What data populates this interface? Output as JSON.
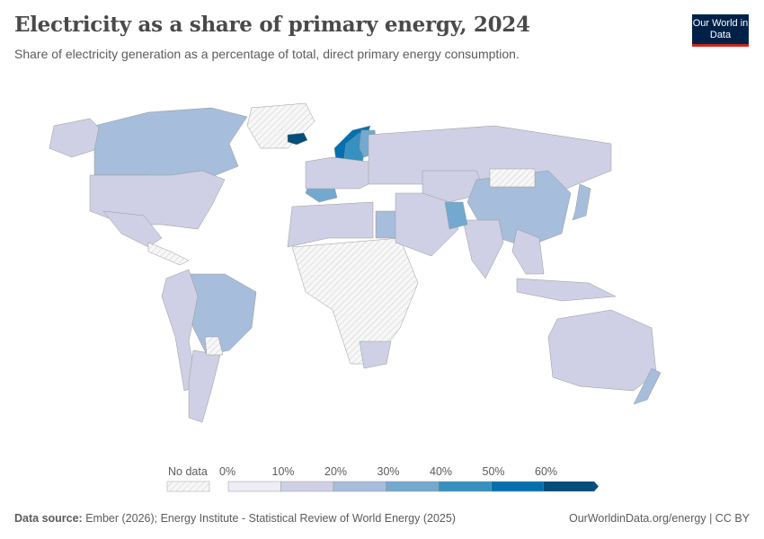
{
  "header": {
    "title": "Electricity as a share of primary energy, 2024",
    "subtitle": "Share of electricity generation as a percentage of total, direct primary energy consumption.",
    "logo": "Our World in Data"
  },
  "legend": {
    "no_data_label": "No data",
    "ticks": [
      "0%",
      "10%",
      "20%",
      "30%",
      "40%",
      "50%",
      "60%"
    ],
    "colors": [
      "#eeedf5",
      "#cfcfe5",
      "#a6bddb",
      "#74a9cf",
      "#3690c0",
      "#0570b0",
      "#034e7b"
    ],
    "no_data_color": "#f0f0f0"
  },
  "map": {
    "regions": [
      {
        "name": "canada",
        "bin": 2
      },
      {
        "name": "usa",
        "bin": 1
      },
      {
        "name": "alaska",
        "bin": 1
      },
      {
        "name": "greenland",
        "bin": -1
      },
      {
        "name": "mexico",
        "bin": 1
      },
      {
        "name": "central-america",
        "bin": -1
      },
      {
        "name": "brazil",
        "bin": 2
      },
      {
        "name": "andes",
        "bin": 1
      },
      {
        "name": "argentina",
        "bin": 1
      },
      {
        "name": "paraguay",
        "bin": -1
      },
      {
        "name": "iceland",
        "bin": 6
      },
      {
        "name": "norway",
        "bin": 5
      },
      {
        "name": "sweden",
        "bin": 4
      },
      {
        "name": "finland",
        "bin": 3
      },
      {
        "name": "france",
        "bin": 3
      },
      {
        "name": "western-europe",
        "bin": 1
      },
      {
        "name": "north-africa",
        "bin": 1
      },
      {
        "name": "egypt",
        "bin": 2
      },
      {
        "name": "sub-saharan-africa",
        "bin": -1
      },
      {
        "name": "south-africa",
        "bin": 1
      },
      {
        "name": "russia",
        "bin": 1
      },
      {
        "name": "middle-east",
        "bin": 1
      },
      {
        "name": "central-asia",
        "bin": 1
      },
      {
        "name": "china",
        "bin": 2
      },
      {
        "name": "india",
        "bin": 1
      },
      {
        "name": "pakistan",
        "bin": 3
      },
      {
        "name": "southeast-asia",
        "bin": 1
      },
      {
        "name": "japan",
        "bin": 2
      },
      {
        "name": "indonesia",
        "bin": 1
      },
      {
        "name": "australia",
        "bin": 1
      },
      {
        "name": "new-zealand",
        "bin": 2
      },
      {
        "name": "mongolia",
        "bin": -1
      }
    ]
  },
  "footer": {
    "source_label": "Data source:",
    "source": "Ember (2026); Energy Institute - Statistical Review of World Energy (2025)",
    "link": "OurWorldinData.org/energy | CC BY"
  }
}
